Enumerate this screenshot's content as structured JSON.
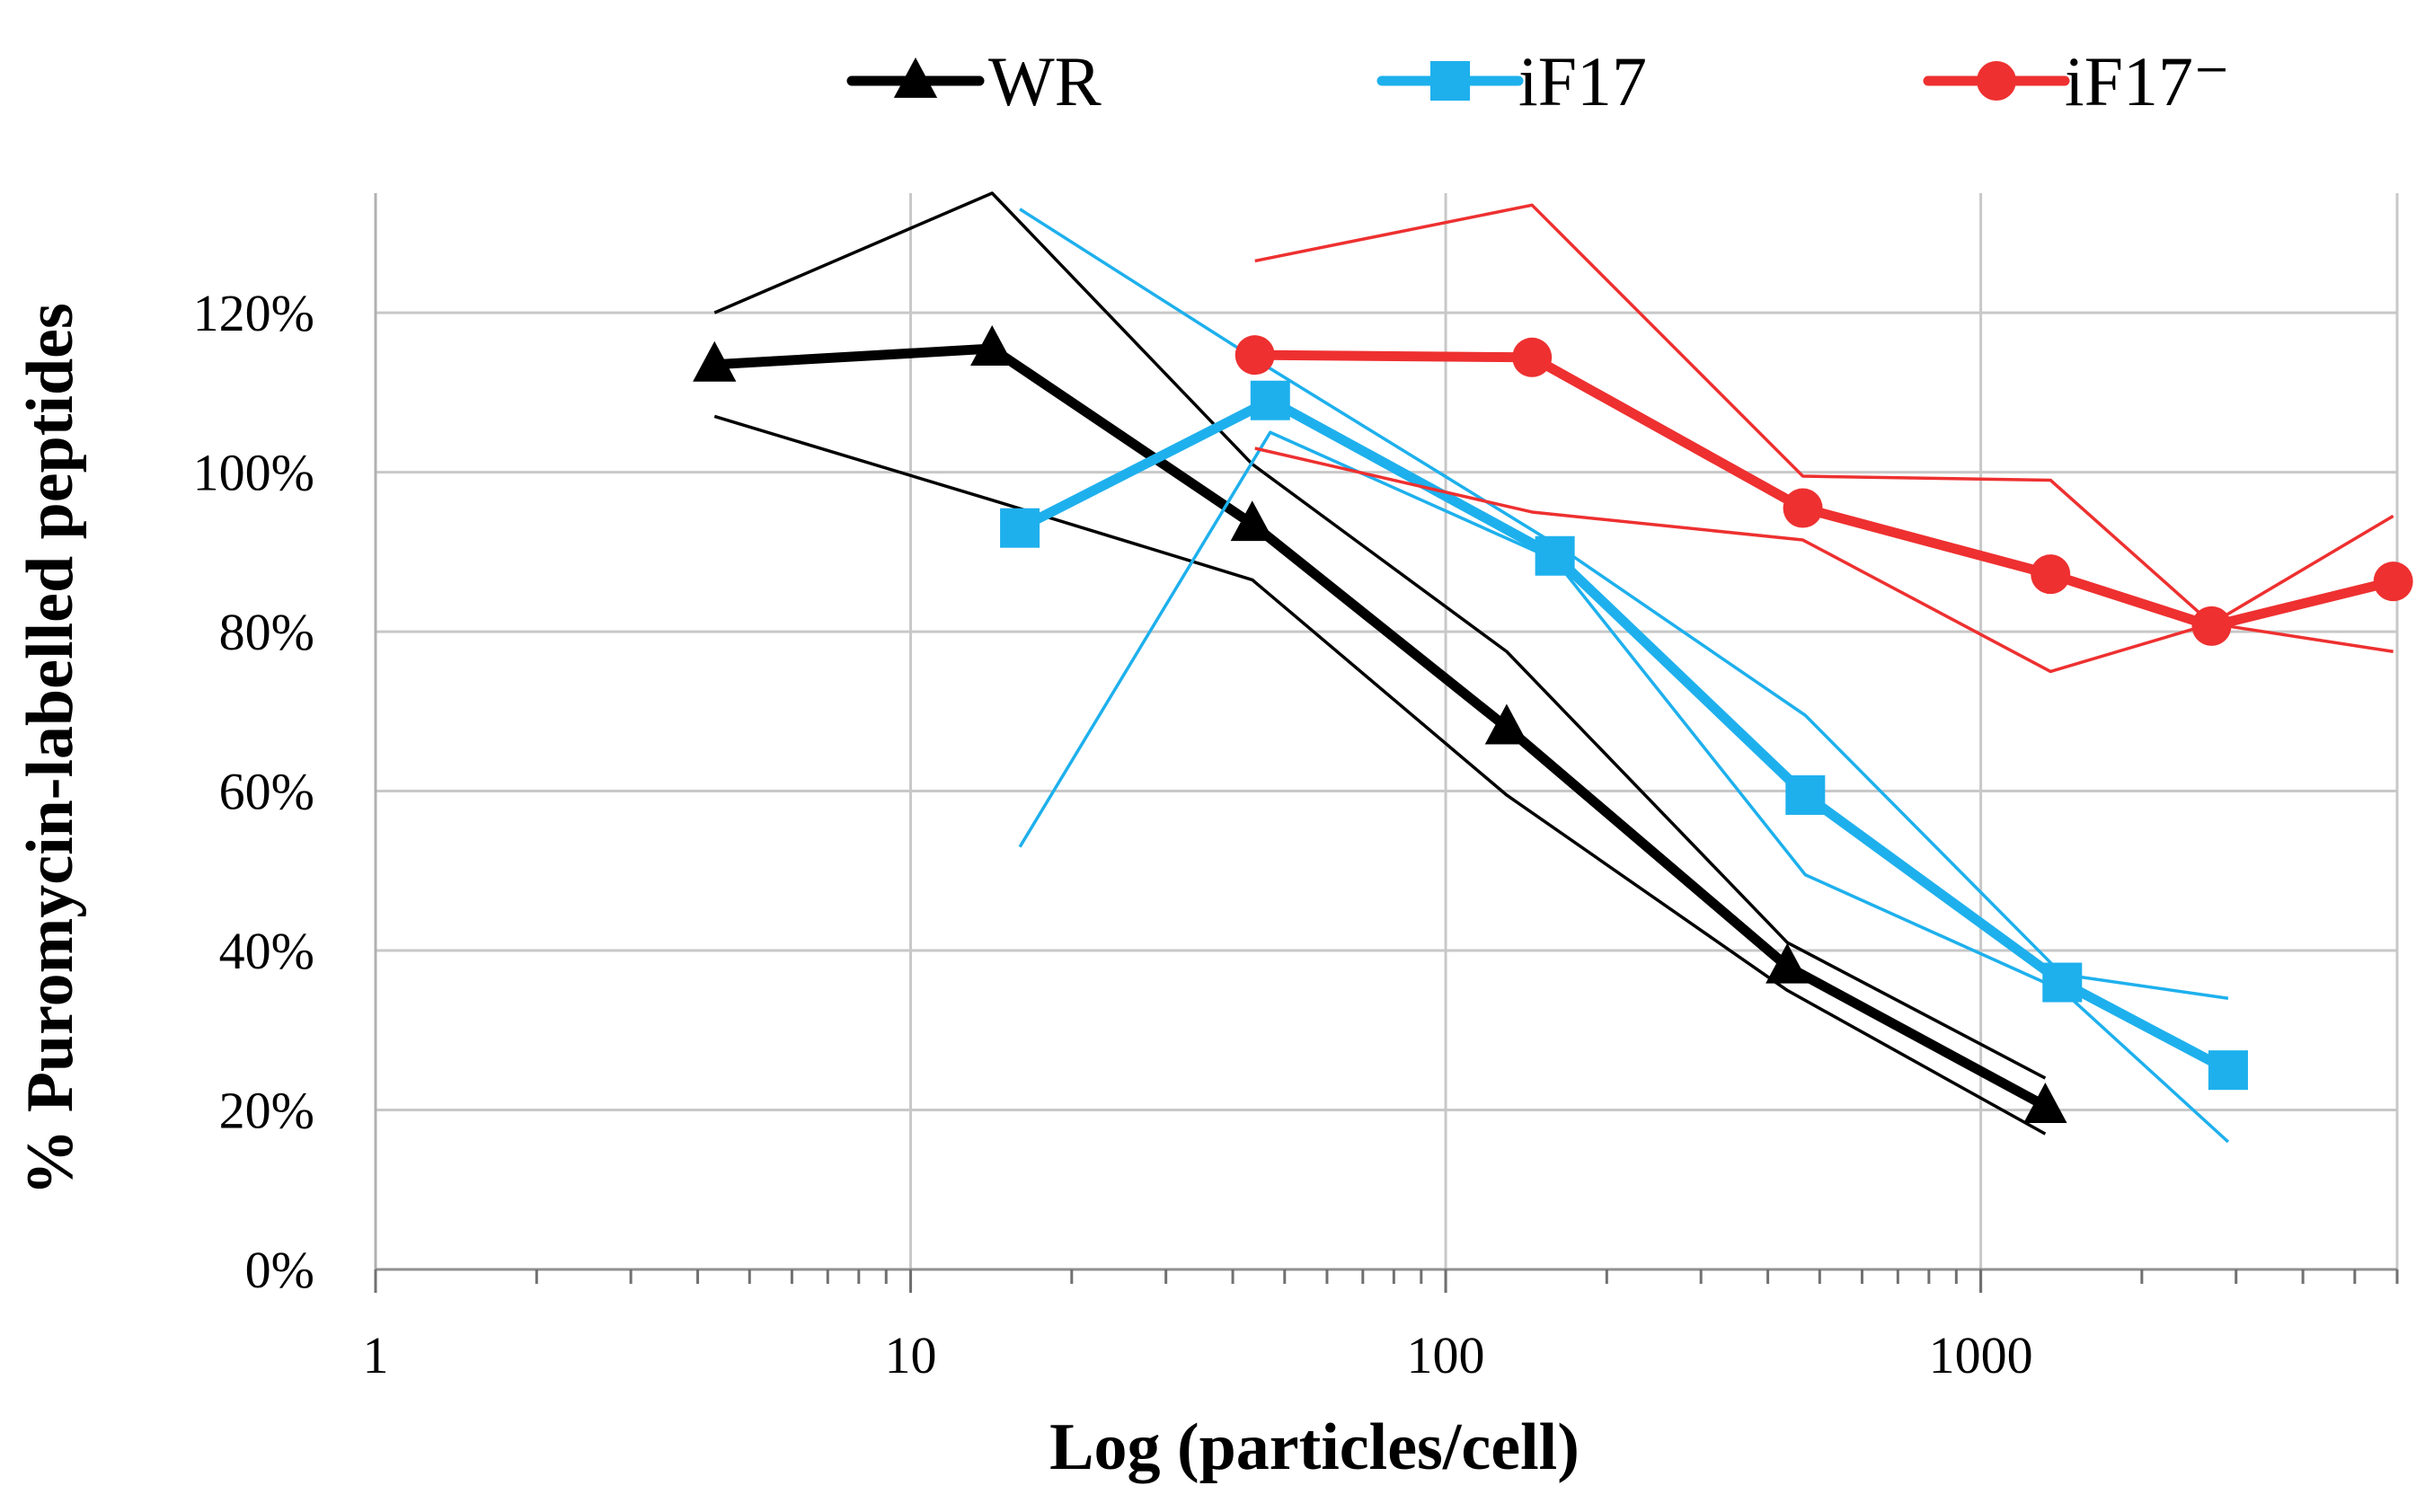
{
  "chart_data": {
    "type": "line",
    "title": "",
    "xlabel": "Log (particles/cell)",
    "ylabel": "% Puromycin-labelled peptides",
    "xscale": "log",
    "xlim": [
      1,
      6000
    ],
    "ylim": [
      0,
      1.35
    ],
    "x_ticks": [
      1,
      10,
      100,
      1000
    ],
    "x_tick_labels": [
      "1",
      "10",
      "100",
      "1000"
    ],
    "y_ticks": [
      0,
      0.2,
      0.4,
      0.6,
      0.8,
      1.0,
      1.2
    ],
    "y_tick_labels": [
      "0%",
      "20%",
      "40%",
      "60%",
      "80%",
      "100%",
      "120%"
    ],
    "grid": true,
    "legend_position": "top",
    "series": [
      {
        "name": "WR",
        "color": "#000000",
        "marker": "triangle",
        "x": [
          4.3,
          14.2,
          43.5,
          130,
          435,
          1320
        ],
        "values": [
          1.135,
          1.155,
          0.935,
          0.68,
          0.38,
          0.205
        ],
        "upper": [
          1.2,
          1.35,
          1.01,
          0.775,
          0.41,
          0.24
        ],
        "lower": [
          1.07,
          0.965,
          0.865,
          0.595,
          0.35,
          0.17
        ]
      },
      {
        "name": "iF17",
        "color": "#1eb0ed",
        "marker": "square",
        "x": [
          16,
          47,
          160,
          470,
          1420,
          2900
        ],
        "values": [
          0.93,
          1.09,
          0.895,
          0.595,
          0.36,
          0.25
        ],
        "upper": [
          1.33,
          1.13,
          0.91,
          0.695,
          0.37,
          0.34
        ],
        "lower": [
          0.53,
          1.05,
          0.89,
          0.495,
          0.35,
          0.16
        ]
      },
      {
        "name": "iF17⁻",
        "color": "#ee3030",
        "marker": "circle",
        "x": [
          44,
          145,
          465,
          1350,
          2700,
          5900
        ],
        "values": [
          1.147,
          1.144,
          0.955,
          0.872,
          0.807,
          0.863
        ],
        "upper": [
          1.265,
          1.335,
          0.995,
          0.99,
          0.81,
          0.945
        ],
        "lower": [
          1.03,
          0.95,
          0.915,
          0.75,
          0.81,
          0.775
        ]
      }
    ]
  }
}
